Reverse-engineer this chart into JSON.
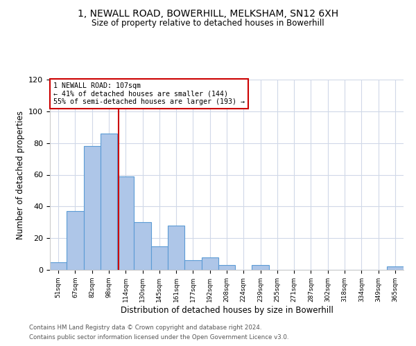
{
  "title": "1, NEWALL ROAD, BOWERHILL, MELKSHAM, SN12 6XH",
  "subtitle": "Size of property relative to detached houses in Bowerhill",
  "xlabel": "Distribution of detached houses by size in Bowerhill",
  "ylabel": "Number of detached properties",
  "bar_labels": [
    "51sqm",
    "67sqm",
    "82sqm",
    "98sqm",
    "114sqm",
    "130sqm",
    "145sqm",
    "161sqm",
    "177sqm",
    "192sqm",
    "208sqm",
    "224sqm",
    "239sqm",
    "255sqm",
    "271sqm",
    "287sqm",
    "302sqm",
    "318sqm",
    "334sqm",
    "349sqm",
    "365sqm"
  ],
  "bar_values": [
    5,
    37,
    78,
    86,
    59,
    30,
    15,
    28,
    6,
    8,
    3,
    0,
    3,
    0,
    0,
    0,
    0,
    0,
    0,
    0,
    2
  ],
  "bar_color": "#aec6e8",
  "bar_edge_color": "#5b9bd5",
  "marker_label": "1 NEWALL ROAD: 107sqm",
  "marker_line_color": "#cc0000",
  "annotation_line1": "← 41% of detached houses are smaller (144)",
  "annotation_line2": "55% of semi-detached houses are larger (193) →",
  "annotation_box_color": "#ffffff",
  "annotation_box_edge": "#cc0000",
  "ylim": [
    0,
    120
  ],
  "yticks": [
    0,
    20,
    40,
    60,
    80,
    100,
    120
  ],
  "footer_line1": "Contains HM Land Registry data © Crown copyright and database right 2024.",
  "footer_line2": "Contains public sector information licensed under the Open Government Licence v3.0.",
  "background_color": "#ffffff",
  "grid_color": "#d0d8e8"
}
